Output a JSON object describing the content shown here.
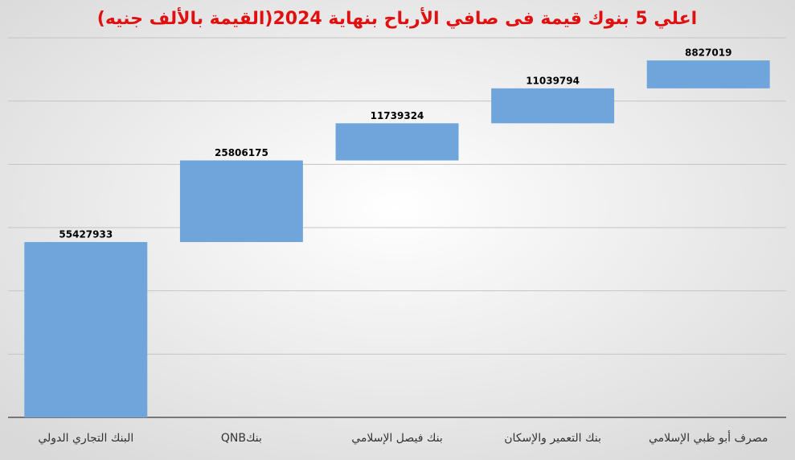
{
  "chart_data": {
    "type": "waterfall",
    "title": "اعلي 5 بنوك قيمة فى صافي  الأرباح بنهاية 2024(القيمة بالألف جنيه)",
    "categories": [
      "البنك التجاري الدولي",
      "بنكQNB",
      "بنك فيصل الإسلامي",
      "بنك التعمير والإسكان",
      "مصرف أبو ظبي الإسلامي"
    ],
    "values": [
      55427933,
      25806175,
      11739324,
      11039794,
      8827019
    ],
    "color": "#6fa5da",
    "ylim": [
      0,
      120000000
    ],
    "yticks": [
      0,
      20000000,
      40000000,
      60000000,
      80000000,
      100000000,
      120000000
    ],
    "grid": true
  }
}
